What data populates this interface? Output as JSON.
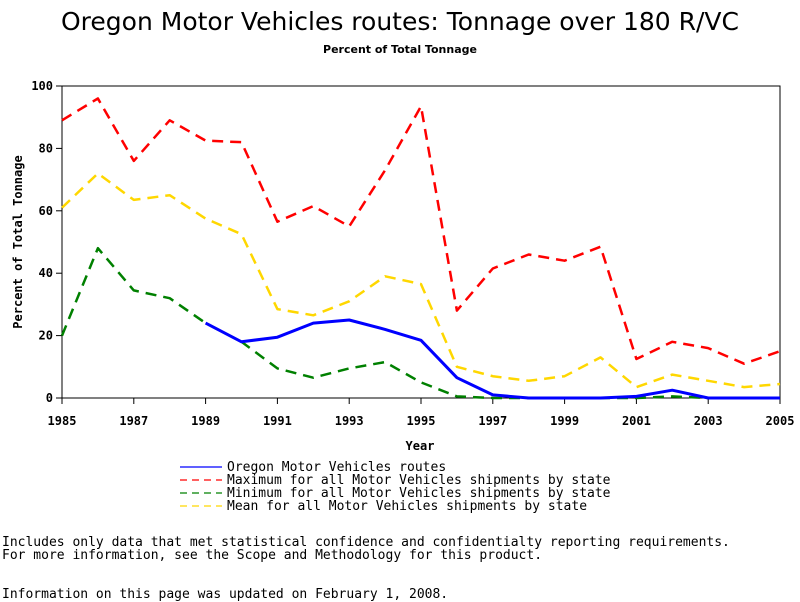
{
  "chart_data": {
    "type": "line",
    "title": "Oregon Motor Vehicles routes: Tonnage over 180 R/VC",
    "subtitle": "Percent of Total Tonnage",
    "xlabel": "Year",
    "ylabel": "Percent of Total Tonnage",
    "xlim": [
      1985,
      2005
    ],
    "ylim": [
      0,
      100
    ],
    "x_ticks": [
      "1985",
      "1987",
      "1989",
      "1991",
      "1993",
      "1995",
      "1997",
      "1999",
      "2001",
      "2003",
      "2005"
    ],
    "y_ticks": [
      "0",
      "20",
      "40",
      "60",
      "80",
      "100"
    ],
    "x": [
      1985,
      1986,
      1987,
      1988,
      1989,
      1990,
      1991,
      1992,
      1993,
      1994,
      1995,
      1996,
      1997,
      1998,
      1999,
      2000,
      2001,
      2002,
      2003,
      2004,
      2005
    ],
    "grid": false,
    "legend_position": "bottom",
    "series": [
      {
        "name": "Oregon Motor Vehicles routes",
        "color": "#0000ff",
        "style": "solid",
        "values": [
          null,
          null,
          null,
          null,
          24,
          18,
          19.5,
          24,
          25,
          22,
          18.5,
          6.5,
          1,
          0,
          0,
          0,
          0.5,
          2.5,
          0,
          0,
          0
        ]
      },
      {
        "name": "Maximum for all Motor Vehicles shipments by state",
        "color": "#ff0000",
        "style": "dashed",
        "values": [
          89,
          96,
          76,
          89,
          82.5,
          82,
          56.5,
          61.5,
          55,
          73,
          93.5,
          28,
          41.5,
          46,
          44,
          48.5,
          12.5,
          18,
          16,
          11,
          15
        ]
      },
      {
        "name": "Minimum for all Motor Vehicles shipments by state",
        "color": "#008000",
        "style": "dashed",
        "values": [
          20,
          48,
          34.5,
          32,
          24,
          18,
          9.5,
          6.5,
          9.5,
          11.5,
          5,
          0.5,
          0,
          0,
          0,
          0,
          0,
          0.5,
          0,
          0,
          0
        ]
      },
      {
        "name": "Mean for all Motor Vehicles shipments by state",
        "color": "#ffd700",
        "style": "dashed",
        "values": [
          61,
          72,
          63.5,
          65,
          57.5,
          52.5,
          28.5,
          26.5,
          31,
          39,
          36.5,
          10,
          7,
          5.5,
          7,
          13,
          3.5,
          7.5,
          5.5,
          3.5,
          4.5
        ]
      }
    ]
  },
  "footnotes": {
    "line1": "Includes only data that met statistical confidence and confidentialty reporting requirements.",
    "line2": "For more information, see the Scope and Methodology for this product.",
    "line3": "Information on this page was updated on February 1, 2008."
  }
}
